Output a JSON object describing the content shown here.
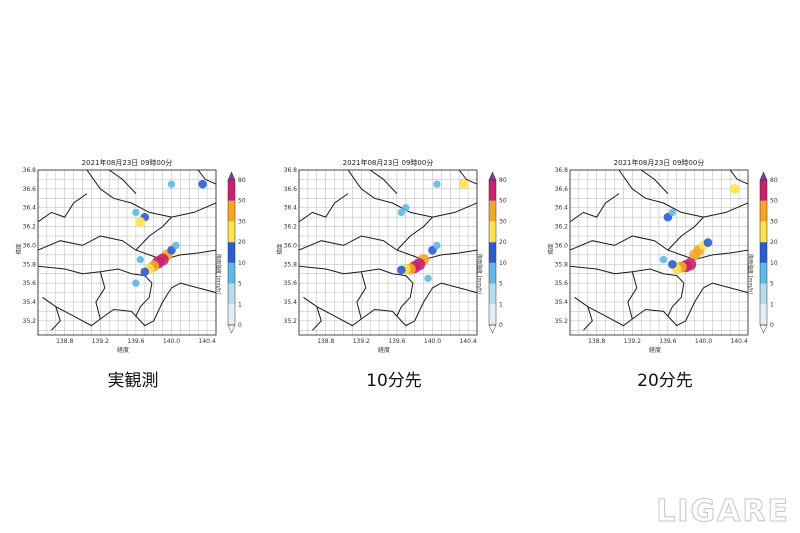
{
  "panels": [
    {
      "title": "2021年08月23日 09時00分",
      "caption": "実観測",
      "ylabel": "緯度",
      "xlabel": "経度",
      "colorbar_label": "降雨強度 [mm/h]",
      "rain_cells": [
        {
          "lon": 139.95,
          "lat": 35.9,
          "level": 5
        },
        {
          "lon": 139.9,
          "lat": 35.85,
          "level": 6
        },
        {
          "lon": 139.85,
          "lat": 35.82,
          "level": 6
        },
        {
          "lon": 139.8,
          "lat": 35.78,
          "level": 5
        },
        {
          "lon": 139.75,
          "lat": 35.75,
          "level": 4
        },
        {
          "lon": 139.7,
          "lat": 35.72,
          "level": 3
        },
        {
          "lon": 140.0,
          "lat": 35.95,
          "level": 3
        },
        {
          "lon": 140.05,
          "lat": 36.0,
          "level": 2
        },
        {
          "lon": 139.65,
          "lat": 35.85,
          "level": 2
        },
        {
          "lon": 139.7,
          "lat": 36.3,
          "level": 3
        },
        {
          "lon": 139.65,
          "lat": 36.25,
          "level": 4
        },
        {
          "lon": 139.6,
          "lat": 36.35,
          "level": 2
        },
        {
          "lon": 140.35,
          "lat": 36.65,
          "level": 3
        },
        {
          "lon": 140.0,
          "lat": 36.65,
          "level": 2
        },
        {
          "lon": 139.6,
          "lat": 35.6,
          "level": 2
        }
      ]
    },
    {
      "title": "2021年08月23日 09時00分",
      "caption": "10分先",
      "ylabel": "緯度",
      "xlabel": "経度",
      "colorbar_label": "降雨強度 [mm/h]",
      "rain_cells": [
        {
          "lon": 139.9,
          "lat": 35.85,
          "level": 5
        },
        {
          "lon": 139.85,
          "lat": 35.8,
          "level": 6
        },
        {
          "lon": 139.8,
          "lat": 35.77,
          "level": 6
        },
        {
          "lon": 139.75,
          "lat": 35.75,
          "level": 5
        },
        {
          "lon": 139.7,
          "lat": 35.75,
          "level": 4
        },
        {
          "lon": 139.65,
          "lat": 35.74,
          "level": 3
        },
        {
          "lon": 140.0,
          "lat": 35.95,
          "level": 3
        },
        {
          "lon": 140.05,
          "lat": 36.0,
          "level": 2
        },
        {
          "lon": 139.65,
          "lat": 36.35,
          "level": 2
        },
        {
          "lon": 139.7,
          "lat": 36.4,
          "level": 2
        },
        {
          "lon": 140.35,
          "lat": 36.65,
          "level": 4
        },
        {
          "lon": 140.05,
          "lat": 36.65,
          "level": 2
        },
        {
          "lon": 139.95,
          "lat": 35.65,
          "level": 2
        }
      ]
    },
    {
      "title": "2021年08月23日 09時00分",
      "caption": "20分先",
      "ylabel": "緯度",
      "xlabel": "経度",
      "colorbar_label": "降雨強度 [mm/h]",
      "rain_cells": [
        {
          "lon": 139.95,
          "lat": 35.95,
          "level": 5
        },
        {
          "lon": 140.0,
          "lat": 36.0,
          "level": 4
        },
        {
          "lon": 139.9,
          "lat": 35.9,
          "level": 5
        },
        {
          "lon": 139.85,
          "lat": 35.8,
          "level": 6
        },
        {
          "lon": 139.8,
          "lat": 35.78,
          "level": 6
        },
        {
          "lon": 139.75,
          "lat": 35.77,
          "level": 5
        },
        {
          "lon": 139.7,
          "lat": 35.75,
          "level": 4
        },
        {
          "lon": 139.65,
          "lat": 35.8,
          "level": 3
        },
        {
          "lon": 140.05,
          "lat": 36.03,
          "level": 3
        },
        {
          "lon": 139.6,
          "lat": 36.3,
          "level": 3
        },
        {
          "lon": 139.65,
          "lat": 36.35,
          "level": 2
        },
        {
          "lon": 140.35,
          "lat": 36.6,
          "level": 4
        },
        {
          "lon": 139.55,
          "lat": 35.85,
          "level": 2
        }
      ]
    }
  ],
  "map_axes": {
    "xlim": [
      138.5,
      140.5
    ],
    "ylim": [
      35.05,
      36.8
    ],
    "xticks": [
      138.8,
      139.2,
      139.6,
      140.0,
      140.4
    ],
    "xtick_labels": [
      "138.8",
      "139.2",
      "139.6",
      "140.0",
      "140.4"
    ],
    "yticks": [
      35.2,
      35.4,
      35.6,
      35.8,
      36.0,
      36.2,
      36.4,
      36.6,
      36.8
    ],
    "ytick_labels": [
      "35.2",
      "35.4",
      "35.6",
      "35.8",
      "36.0",
      "36.2",
      "36.4",
      "36.6",
      "36.8"
    ],
    "grid": true
  },
  "colorbar": {
    "ticks": [
      "0",
      "1",
      "5",
      "10",
      "20",
      "30",
      "50",
      "80"
    ],
    "colors": [
      "#e6eef5",
      "#b8dcef",
      "#5fb8e8",
      "#2c5cd0",
      "#ffe14d",
      "#f5a623",
      "#c9206f"
    ],
    "extend_top_color": "#7b3fa0",
    "extend_bottom_color": "#ffffff"
  },
  "logo": "LIGARE"
}
